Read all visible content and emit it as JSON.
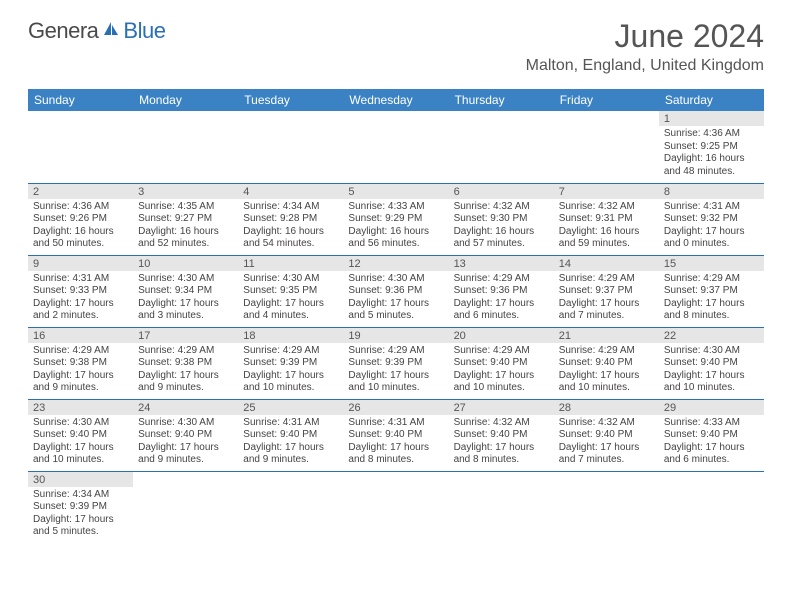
{
  "logo": {
    "main": "Genera",
    "suffix": "Blue"
  },
  "title": "June 2024",
  "location": "Malton, England, United Kingdom",
  "colors": {
    "header_bg": "#3b82c4",
    "header_text": "#ffffff",
    "daynum_bg": "#e6e6e6",
    "rule": "#2a6fb5",
    "body_text": "#444444",
    "title_text": "#555555"
  },
  "weekdays": [
    "Sunday",
    "Monday",
    "Tuesday",
    "Wednesday",
    "Thursday",
    "Friday",
    "Saturday"
  ],
  "weeks": [
    [
      null,
      null,
      null,
      null,
      null,
      null,
      {
        "n": "1",
        "sunrise": "4:36 AM",
        "sunset": "9:25 PM",
        "day_h": "16",
        "day_m": "48"
      }
    ],
    [
      {
        "n": "2",
        "sunrise": "4:36 AM",
        "sunset": "9:26 PM",
        "day_h": "16",
        "day_m": "50"
      },
      {
        "n": "3",
        "sunrise": "4:35 AM",
        "sunset": "9:27 PM",
        "day_h": "16",
        "day_m": "52"
      },
      {
        "n": "4",
        "sunrise": "4:34 AM",
        "sunset": "9:28 PM",
        "day_h": "16",
        "day_m": "54"
      },
      {
        "n": "5",
        "sunrise": "4:33 AM",
        "sunset": "9:29 PM",
        "day_h": "16",
        "day_m": "56"
      },
      {
        "n": "6",
        "sunrise": "4:32 AM",
        "sunset": "9:30 PM",
        "day_h": "16",
        "day_m": "57"
      },
      {
        "n": "7",
        "sunrise": "4:32 AM",
        "sunset": "9:31 PM",
        "day_h": "16",
        "day_m": "59"
      },
      {
        "n": "8",
        "sunrise": "4:31 AM",
        "sunset": "9:32 PM",
        "day_h": "17",
        "day_m": "0"
      }
    ],
    [
      {
        "n": "9",
        "sunrise": "4:31 AM",
        "sunset": "9:33 PM",
        "day_h": "17",
        "day_m": "2"
      },
      {
        "n": "10",
        "sunrise": "4:30 AM",
        "sunset": "9:34 PM",
        "day_h": "17",
        "day_m": "3"
      },
      {
        "n": "11",
        "sunrise": "4:30 AM",
        "sunset": "9:35 PM",
        "day_h": "17",
        "day_m": "4"
      },
      {
        "n": "12",
        "sunrise": "4:30 AM",
        "sunset": "9:36 PM",
        "day_h": "17",
        "day_m": "5"
      },
      {
        "n": "13",
        "sunrise": "4:29 AM",
        "sunset": "9:36 PM",
        "day_h": "17",
        "day_m": "6"
      },
      {
        "n": "14",
        "sunrise": "4:29 AM",
        "sunset": "9:37 PM",
        "day_h": "17",
        "day_m": "7"
      },
      {
        "n": "15",
        "sunrise": "4:29 AM",
        "sunset": "9:37 PM",
        "day_h": "17",
        "day_m": "8"
      }
    ],
    [
      {
        "n": "16",
        "sunrise": "4:29 AM",
        "sunset": "9:38 PM",
        "day_h": "17",
        "day_m": "9"
      },
      {
        "n": "17",
        "sunrise": "4:29 AM",
        "sunset": "9:38 PM",
        "day_h": "17",
        "day_m": "9"
      },
      {
        "n": "18",
        "sunrise": "4:29 AM",
        "sunset": "9:39 PM",
        "day_h": "17",
        "day_m": "10"
      },
      {
        "n": "19",
        "sunrise": "4:29 AM",
        "sunset": "9:39 PM",
        "day_h": "17",
        "day_m": "10"
      },
      {
        "n": "20",
        "sunrise": "4:29 AM",
        "sunset": "9:40 PM",
        "day_h": "17",
        "day_m": "10"
      },
      {
        "n": "21",
        "sunrise": "4:29 AM",
        "sunset": "9:40 PM",
        "day_h": "17",
        "day_m": "10"
      },
      {
        "n": "22",
        "sunrise": "4:30 AM",
        "sunset": "9:40 PM",
        "day_h": "17",
        "day_m": "10"
      }
    ],
    [
      {
        "n": "23",
        "sunrise": "4:30 AM",
        "sunset": "9:40 PM",
        "day_h": "17",
        "day_m": "10"
      },
      {
        "n": "24",
        "sunrise": "4:30 AM",
        "sunset": "9:40 PM",
        "day_h": "17",
        "day_m": "9"
      },
      {
        "n": "25",
        "sunrise": "4:31 AM",
        "sunset": "9:40 PM",
        "day_h": "17",
        "day_m": "9"
      },
      {
        "n": "26",
        "sunrise": "4:31 AM",
        "sunset": "9:40 PM",
        "day_h": "17",
        "day_m": "8"
      },
      {
        "n": "27",
        "sunrise": "4:32 AM",
        "sunset": "9:40 PM",
        "day_h": "17",
        "day_m": "8"
      },
      {
        "n": "28",
        "sunrise": "4:32 AM",
        "sunset": "9:40 PM",
        "day_h": "17",
        "day_m": "7"
      },
      {
        "n": "29",
        "sunrise": "4:33 AM",
        "sunset": "9:40 PM",
        "day_h": "17",
        "day_m": "6"
      }
    ],
    [
      {
        "n": "30",
        "sunrise": "4:34 AM",
        "sunset": "9:39 PM",
        "day_h": "17",
        "day_m": "5"
      },
      null,
      null,
      null,
      null,
      null,
      null
    ]
  ]
}
